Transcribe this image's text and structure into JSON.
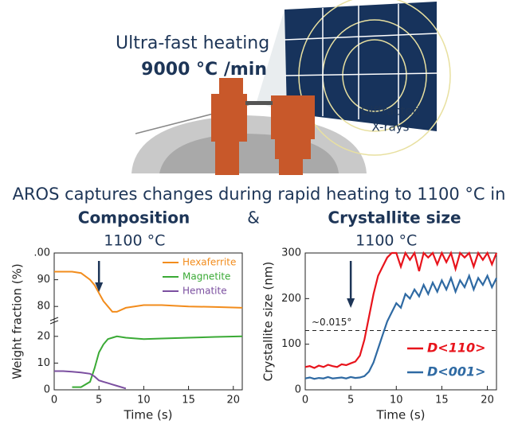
{
  "header": {
    "heating_label": "Ultra-fast heating",
    "heating_rate": "9000 °C /min",
    "xray_label": [
      "Diffracted",
      "X-rays"
    ]
  },
  "headline": {
    "text": "AROS captures changes during rapid heating to 1100 °C in",
    "left": "Composition",
    "joiner": "&",
    "right": "Crystallite size"
  },
  "chart_data": [
    {
      "type": "line",
      "xlabel": "Time (s)",
      "ylabel": "Weight fraction (%)",
      "xlim": [
        0,
        21
      ],
      "xticks": [
        0,
        5,
        10,
        15,
        20
      ],
      "ylim": [
        0,
        100
      ],
      "ybreak": [
        25,
        75
      ],
      "yticks": [
        0,
        10,
        20,
        80,
        90,
        {
          "value": 100,
          "label": ".00"
        }
      ],
      "annotation": {
        "text": "1100 °C",
        "x": 5
      },
      "legend": "upper right",
      "x": [
        0,
        1,
        2,
        3,
        4,
        4.5,
        5,
        5.5,
        6,
        6.5,
        7,
        8,
        10,
        12,
        15,
        18,
        21
      ],
      "series": [
        {
          "name": "Hexaferrite",
          "color": "#f28c1c",
          "values": [
            93,
            93,
            93,
            92.5,
            90,
            88,
            85,
            82,
            80,
            78,
            78,
            79.5,
            80.5,
            80.5,
            80,
            79.8,
            79.5
          ]
        },
        {
          "name": "Magnetite",
          "color": "#3aaa35",
          "values": [
            null,
            null,
            1,
            1,
            3,
            8,
            14,
            17,
            19,
            19.5,
            20,
            19.5,
            19,
            19.2,
            19.5,
            19.8,
            20
          ]
        },
        {
          "name": "Hematite",
          "color": "#7b4fa0",
          "values": [
            7,
            7,
            6.8,
            6.5,
            6,
            5,
            3.5,
            3,
            2.5,
            2,
            1.5,
            0.5,
            null,
            null,
            null,
            null,
            null
          ]
        }
      ]
    },
    {
      "type": "line",
      "xlabel": "Time (s)",
      "ylabel": "Crystallite size (nm)",
      "xlim": [
        0,
        21
      ],
      "xticks": [
        0,
        5,
        10,
        15,
        20
      ],
      "ylim": [
        0,
        300
      ],
      "yticks": [
        0,
        100,
        200,
        300
      ],
      "annotation": {
        "text": "1100 °C",
        "x": 5
      },
      "hline": {
        "value": 130,
        "label": "~0.015°"
      },
      "legend": "lower right",
      "x": [
        0,
        0.5,
        1,
        1.5,
        2,
        2.5,
        3,
        3.5,
        4,
        4.5,
        5,
        5.5,
        6,
        6.5,
        7,
        7.5,
        8,
        8.5,
        9,
        9.5,
        10,
        10.5,
        11,
        11.5,
        12,
        12.5,
        13,
        13.5,
        14,
        14.5,
        15,
        15.5,
        16,
        16.5,
        17,
        17.5,
        18,
        18.5,
        19,
        19.5,
        20,
        20.5,
        21
      ],
      "series": [
        {
          "name": "D<110>",
          "color": "#e8141c",
          "values": [
            50,
            52,
            48,
            53,
            50,
            55,
            52,
            50,
            56,
            54,
            58,
            62,
            75,
            110,
            160,
            210,
            250,
            270,
            290,
            300,
            300,
            270,
            300,
            285,
            300,
            260,
            300,
            290,
            300,
            275,
            300,
            280,
            300,
            265,
            300,
            290,
            300,
            270,
            300,
            285,
            300,
            275,
            300
          ]
        },
        {
          "name": "D<001>",
          "color": "#2f6aa3",
          "values": [
            25,
            27,
            24,
            26,
            25,
            28,
            25,
            26,
            27,
            25,
            28,
            26,
            27,
            30,
            40,
            60,
            90,
            120,
            150,
            170,
            190,
            180,
            210,
            200,
            220,
            205,
            230,
            210,
            235,
            215,
            240,
            220,
            245,
            215,
            240,
            225,
            250,
            220,
            245,
            230,
            250,
            225,
            245
          ]
        }
      ]
    }
  ]
}
